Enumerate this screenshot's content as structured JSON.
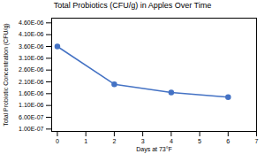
{
  "chart_data": {
    "type": "line",
    "title": "Total Probiotics (CFU/g) in Apples Over Time",
    "xlabel": "Days at 73°F",
    "ylabel": "Total Probiotic Concentration (CFU/g)",
    "x": [
      0,
      2,
      4,
      6
    ],
    "values": [
      3.6e-06,
      2e-06,
      1.65e-06,
      1.45e-06
    ],
    "color": "#4472C4",
    "marker": "circle",
    "xlim": [
      -0.2,
      7
    ],
    "ylim": [
      0,
      4.8e-06
    ],
    "xticks": [
      0,
      1,
      2,
      3,
      4,
      5,
      6,
      7
    ],
    "yticks": [
      {
        "value": 1e-07,
        "label": "1.00E-07"
      },
      {
        "value": 6e-07,
        "label": "6.00E-07"
      },
      {
        "value": 1.1e-06,
        "label": "1.10E-06"
      },
      {
        "value": 1.6e-06,
        "label": "1.60E-06"
      },
      {
        "value": 2.1e-06,
        "label": "2.10E-06"
      },
      {
        "value": 2.6e-06,
        "label": "2.60E-06"
      },
      {
        "value": 3.1e-06,
        "label": "3.10E-06"
      },
      {
        "value": 3.6e-06,
        "label": "3.60E-06"
      },
      {
        "value": 4.1e-06,
        "label": "4.10E-06"
      },
      {
        "value": 4.6e-06,
        "label": "4.60E-06"
      }
    ],
    "grid": false
  }
}
